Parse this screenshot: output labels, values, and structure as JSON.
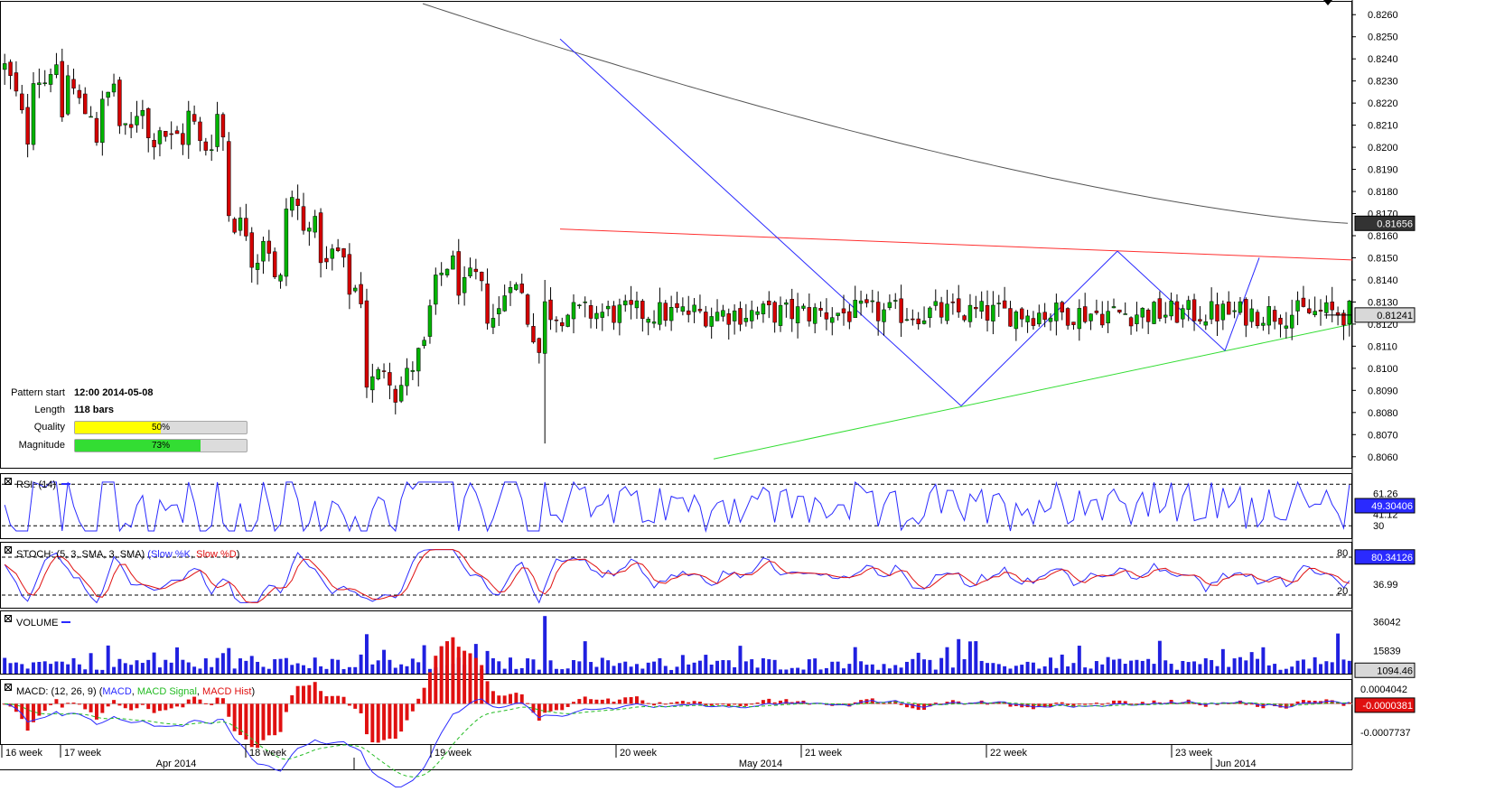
{
  "chart_data": {
    "type": "candlestick",
    "main": {
      "price_min": 0.8055,
      "price_max": 0.8265,
      "ticks": [
        "0.8060",
        "0.8070",
        "0.8080",
        "0.8090",
        "0.8100",
        "0.8110",
        "0.8120",
        "0.8130",
        "0.8140",
        "0.8150",
        "0.8160",
        "0.8170",
        "0.8180",
        "0.8190",
        "0.8200",
        "0.8210",
        "0.8220",
        "0.8230",
        "0.8240",
        "0.8250",
        "0.8260"
      ],
      "current_price": "0.81241",
      "ma_value": "0.81656",
      "resistance": [
        [
          0.8163,
          0.8149
        ]
      ],
      "support": [
        [
          0.8059,
          0.812
        ]
      ],
      "pattern_points": [
        [
          0.8249,
          0.8083
        ],
        [
          0.8083,
          0.8153
        ],
        [
          0.8153,
          0.8108
        ],
        [
          0.8108,
          0.815
        ]
      ]
    },
    "pattern_info": {
      "start_label": "Pattern start",
      "start_value": "12:00 2014-05-08",
      "length_label": "Length",
      "length_value": "118 bars",
      "quality_label": "Quality",
      "quality_text": "50%",
      "quality": 0.5,
      "magnitude_label": "Magnitude",
      "magnitude_text": "73%",
      "magnitude": 0.73
    },
    "rsi": {
      "title": "RSI: (14)",
      "ticks": [
        "61.26",
        "41.12",
        "30"
      ],
      "current": "49.30406"
    },
    "stoch": {
      "title_prefix": "STOCH: (5, 3, SMA, 3, SMA)",
      "k_label": "Slow %K",
      "d_label": "Slow %D",
      "ticks": [
        "80",
        "36.99",
        "20"
      ],
      "current": "80.34126"
    },
    "volume": {
      "title": "VOLUME",
      "ticks": [
        "36042",
        "15839"
      ],
      "current": "1094.46"
    },
    "macd": {
      "title_prefix": "MACD: (12, 26, 9)",
      "macd_label": "MACD",
      "signal_label": "MACD Signal",
      "hist_label": "MACD Hist",
      "ticks": [
        "0.0004042",
        "-0.0007737"
      ],
      "current": "-0.0000381"
    },
    "x_axis": {
      "weeks": [
        "16 week",
        "17 week",
        "18 week",
        "19 week",
        "20 week",
        "21 week",
        "22 week",
        "23 week"
      ],
      "months": [
        "Apr 2014",
        "May 2014",
        "Jun 2014"
      ]
    },
    "colors": {
      "up": "#00b400",
      "down": "#d40000",
      "trend_blue": "#2a2aff",
      "resistance": "#ff3030",
      "support": "#33dd33",
      "ma": "#555555",
      "quality_fill": "#ffff00",
      "magnitude_fill": "#33dd33"
    }
  }
}
